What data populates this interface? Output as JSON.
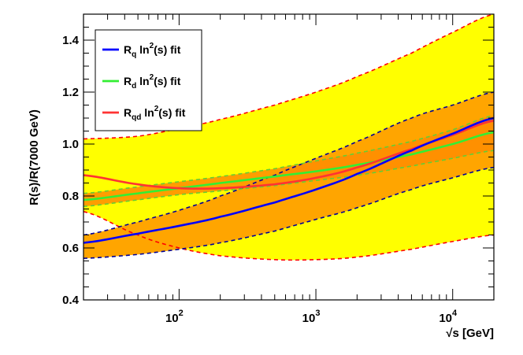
{
  "chart_data": {
    "type": "line",
    "title": "",
    "xlabel": "√s [GeV]",
    "ylabel": "R(s)/R(7000 GeV)",
    "x_scale": "log",
    "xlim": [
      20,
      20000
    ],
    "ylim": [
      0.4,
      1.5
    ],
    "y_ticks": [
      0.4,
      0.6,
      0.8,
      1.0,
      1.2,
      1.4
    ],
    "y_tick_labels": [
      "0.4",
      "0.6",
      "0.8",
      "1.0",
      "1.2",
      "1.4"
    ],
    "x_ticks": [
      100,
      1000,
      10000
    ],
    "x_tick_labels": [
      {
        "base": "10",
        "exp": "2"
      },
      {
        "base": "10",
        "exp": "3"
      },
      {
        "base": "10",
        "exp": "4"
      }
    ],
    "grid": false,
    "legend_position": "top-left",
    "colors": {
      "band_outer": "#ffff00",
      "band_inner": "#ffa500",
      "band_overlap": "#ff8c00",
      "rq": "#0000ff",
      "rd": "#33ee33",
      "rqd": "#ff3333",
      "rq_dashed": "#000099",
      "rqd_dashed": "#ff0000",
      "rd_dashed": "#66cc33"
    },
    "series": [
      {
        "key": "rq",
        "legend": {
          "base": "R",
          "sub": "q",
          "mid": " ln",
          "sup": "2",
          "tail": "(s) fit"
        },
        "x": [
          20,
          50,
          100,
          200,
          500,
          1000,
          2000,
          5000,
          10000,
          20000
        ],
        "y": [
          0.62,
          0.655,
          0.685,
          0.72,
          0.775,
          0.825,
          0.885,
          0.975,
          1.04,
          1.1
        ],
        "lower": [
          0.56,
          0.575,
          0.595,
          0.62,
          0.665,
          0.71,
          0.755,
          0.825,
          0.87,
          0.91
        ],
        "upper": [
          0.65,
          0.7,
          0.745,
          0.8,
          0.88,
          0.945,
          1.01,
          1.1,
          1.15,
          1.2
        ]
      },
      {
        "key": "rd",
        "legend": {
          "base": "R",
          "sub": "d",
          "mid": " ln",
          "sup": "2",
          "tail": "(s) fit"
        },
        "x": [
          20,
          50,
          100,
          200,
          500,
          1000,
          2000,
          5000,
          10000,
          20000
        ],
        "y": [
          0.785,
          0.81,
          0.83,
          0.85,
          0.875,
          0.895,
          0.92,
          0.96,
          1.0,
          1.045
        ],
        "lower": [
          0.76,
          0.785,
          0.805,
          0.82,
          0.84,
          0.86,
          0.88,
          0.915,
          0.945,
          0.975
        ],
        "upper": [
          0.81,
          0.835,
          0.855,
          0.875,
          0.905,
          0.935,
          0.965,
          1.01,
          1.055,
          1.11
        ]
      },
      {
        "key": "rqd",
        "legend": {
          "base": "R",
          "sub": "qd",
          "mid": " ln",
          "sup": "2",
          "tail": "(s) fit"
        },
        "x": [
          20,
          50,
          100,
          200,
          500,
          1000,
          2000,
          5000,
          10000,
          20000
        ],
        "y": [
          0.88,
          0.845,
          0.83,
          0.83,
          0.845,
          0.87,
          0.91,
          0.98,
          1.035,
          1.09
        ],
        "lower": [
          0.74,
          0.65,
          0.6,
          0.57,
          0.555,
          0.555,
          0.565,
          0.595,
          0.625,
          0.65
        ],
        "upper": [
          1.02,
          1.03,
          1.06,
          1.095,
          1.15,
          1.2,
          1.26,
          1.35,
          1.43,
          1.5
        ]
      }
    ]
  }
}
